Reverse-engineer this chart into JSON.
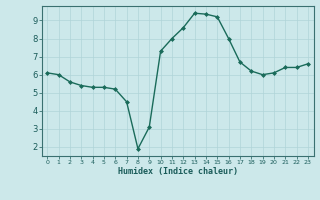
{
  "x": [
    0,
    1,
    2,
    3,
    4,
    5,
    6,
    7,
    8,
    9,
    10,
    11,
    12,
    13,
    14,
    15,
    16,
    17,
    18,
    19,
    20,
    21,
    22,
    23
  ],
  "y": [
    6.1,
    6.0,
    5.6,
    5.4,
    5.3,
    5.3,
    5.2,
    4.5,
    1.9,
    3.1,
    7.3,
    8.0,
    8.6,
    9.4,
    9.35,
    9.2,
    8.0,
    6.7,
    6.2,
    6.0,
    6.1,
    6.4,
    6.4,
    6.6
  ],
  "xlabel": "Humidex (Indice chaleur)",
  "ylim": [
    1.5,
    9.8
  ],
  "xlim": [
    -0.5,
    23.5
  ],
  "yticks": [
    2,
    3,
    4,
    5,
    6,
    7,
    8,
    9
  ],
  "xticks": [
    0,
    1,
    2,
    3,
    4,
    5,
    6,
    7,
    8,
    9,
    10,
    11,
    12,
    13,
    14,
    15,
    16,
    17,
    18,
    19,
    20,
    21,
    22,
    23
  ],
  "line_color": "#1a6b5a",
  "marker_color": "#1a6b5a",
  "bg_color": "#cce8ea",
  "grid_color": "#b0d4d8",
  "axis_color": "#1a5c5a",
  "spine_color": "#3a7070"
}
